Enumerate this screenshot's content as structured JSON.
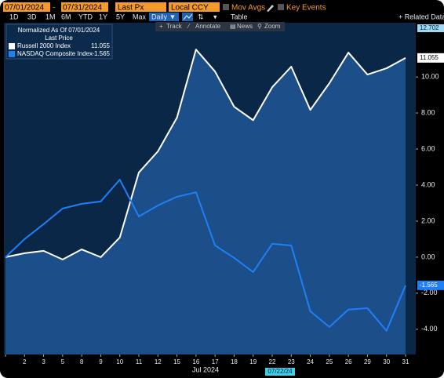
{
  "toolbar": {
    "start_date": "07/01/2024",
    "separator": "-",
    "end_date": "07/31/2024",
    "price_field": "Last Px",
    "currency": "Local CCY",
    "mov_avgs": "Mov Avgs",
    "key_events": "Key Events",
    "periods": [
      "1D",
      "3D",
      "1M",
      "6M",
      "YTD",
      "1Y",
      "5Y",
      "Max"
    ],
    "frequency": "Daily ▼",
    "table": "Table",
    "related": "+ Related Data",
    "tools": [
      "Track",
      "Annotate",
      "News",
      "Zoom"
    ]
  },
  "chart_data": {
    "type": "area",
    "legend_title": "Normalized As Of 07/01/2024",
    "legend_subtitle": "Last Price",
    "x_label": "Jul 2024",
    "crosshair_date": "07/22/24",
    "categories": [
      null,
      "2",
      "3",
      "5",
      "8",
      "9",
      "10",
      "11",
      "12",
      "15",
      "16",
      "17",
      "18",
      "19",
      "22",
      "23",
      "24",
      "25",
      "26",
      "29",
      "30",
      "31"
    ],
    "series": [
      {
        "name": "Russell 2000 Index",
        "color": "#ffffff",
        "fill": "#1c4f8a",
        "values": [
          0,
          0.22,
          0.35,
          -0.13,
          0.43,
          0,
          1.09,
          4.7,
          5.87,
          7.74,
          11.52,
          10.3,
          8.35,
          7.6,
          9.43,
          10.57,
          8.17,
          9.65,
          11.35,
          10.13,
          10.48,
          11.055
        ]
      },
      {
        "name": "NASDAQ Composite Index",
        "color": "#1f7ff5",
        "values": [
          0,
          1.0,
          1.83,
          2.7,
          2.96,
          3.09,
          4.3,
          2.26,
          2.87,
          3.35,
          3.6,
          0.65,
          -0.04,
          -0.83,
          0.74,
          0.65,
          -3.0,
          -3.87,
          -2.91,
          -2.83,
          -4.09,
          -1.565
        ]
      }
    ],
    "ylim": [
      -5.4,
      12.702
    ],
    "yticks": [
      {
        "value": 10,
        "label": "10.00"
      },
      {
        "value": 8,
        "label": "8.00"
      },
      {
        "value": 6,
        "label": "6.00"
      },
      {
        "value": 4,
        "label": "4.00"
      },
      {
        "value": 2,
        "label": "2.00"
      },
      {
        "value": 0,
        "label": "0.00"
      },
      {
        "value": -2,
        "label": "-2.00"
      },
      {
        "value": -4,
        "label": "-4.00"
      }
    ]
  }
}
